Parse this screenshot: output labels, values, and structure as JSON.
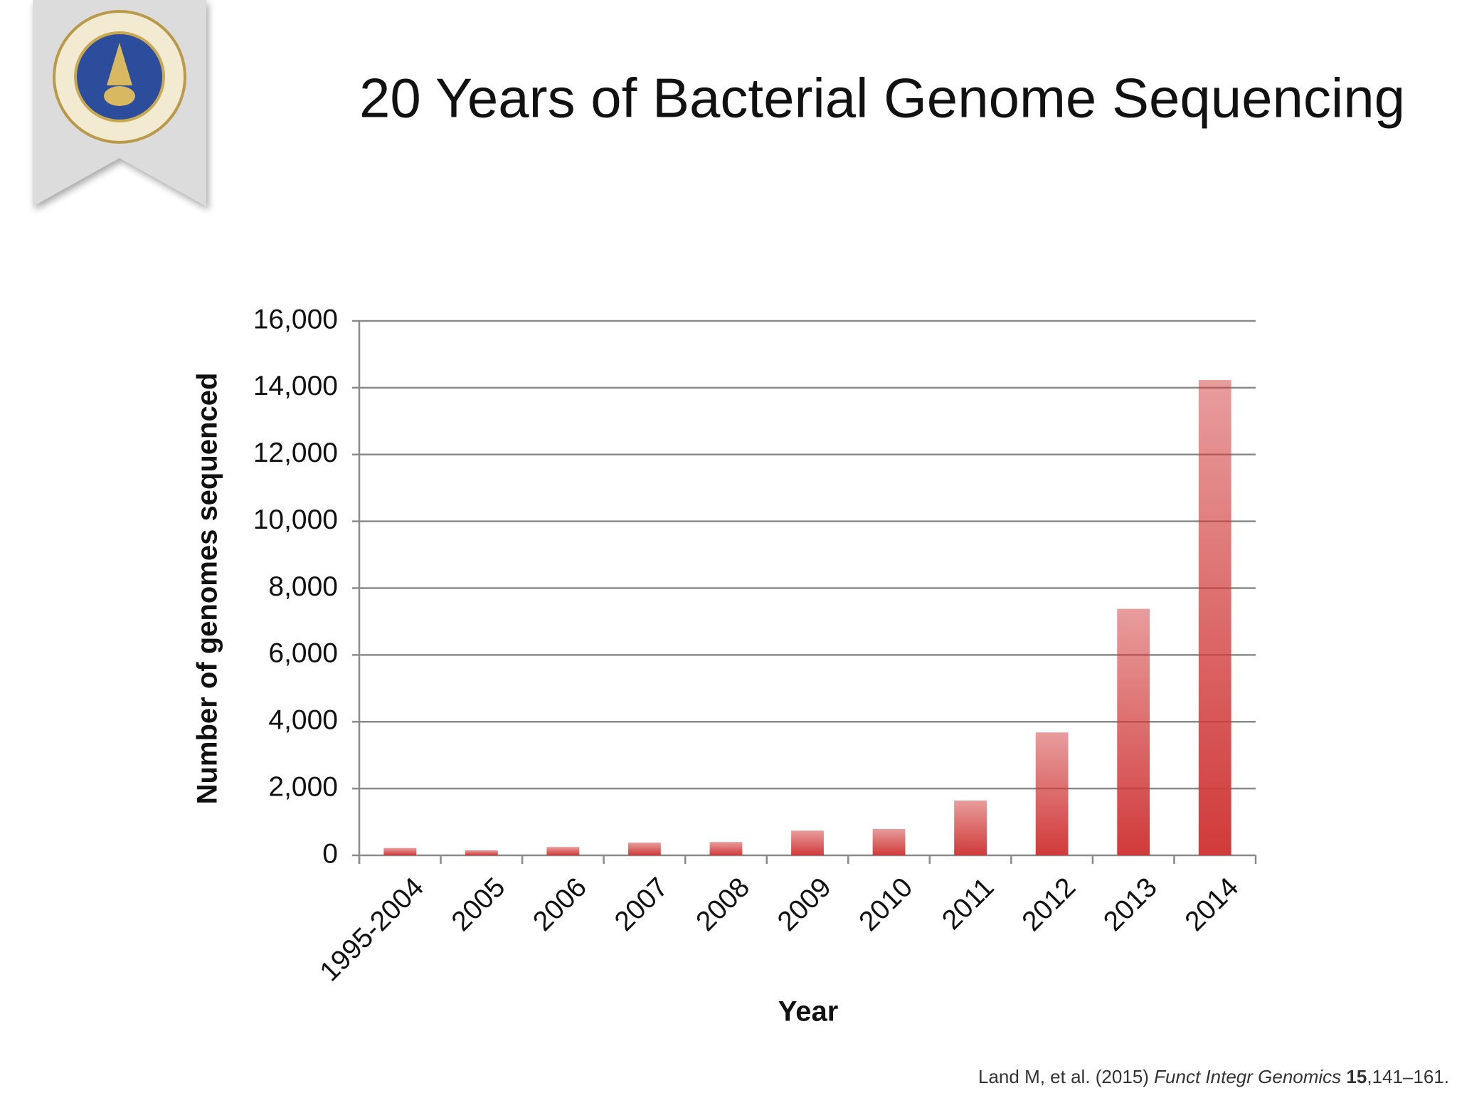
{
  "chart_data": {
    "type": "bar",
    "title": "20 Years of Bacterial Genome Sequencing",
    "y_label": "Number of genomes sequenced",
    "x_label": "Year",
    "categories": [
      "1995-2004",
      "2005",
      "2006",
      "2007",
      "2008",
      "2009",
      "2010",
      "2011",
      "2012",
      "2013",
      "2014"
    ],
    "values": [
      220,
      150,
      250,
      380,
      400,
      740,
      790,
      1640,
      3680,
      7380,
      14230
    ],
    "color": "#d13a3a",
    "ylim": [
      0,
      16000
    ],
    "yticks": [
      0,
      {
        "value": 2000,
        "label": "2,000"
      },
      {
        "value": 4000,
        "label": "4,000"
      },
      {
        "value": 6000,
        "label": "6,000"
      },
      {
        "value": 8000,
        "label": "8,000"
      },
      {
        "value": 10000,
        "label": "10,000"
      },
      {
        "value": 12000,
        "label": "12,000"
      },
      {
        "value": 14000,
        "label": "14,000"
      },
      {
        "value": 16000,
        "label": "16,000"
      }
    ],
    "grid": true
  },
  "citation": {
    "authors": "Land M, et al. (2015)",
    "journal": "Funct Integr Genomics",
    "volume": "15",
    "pages": ",141–161."
  }
}
